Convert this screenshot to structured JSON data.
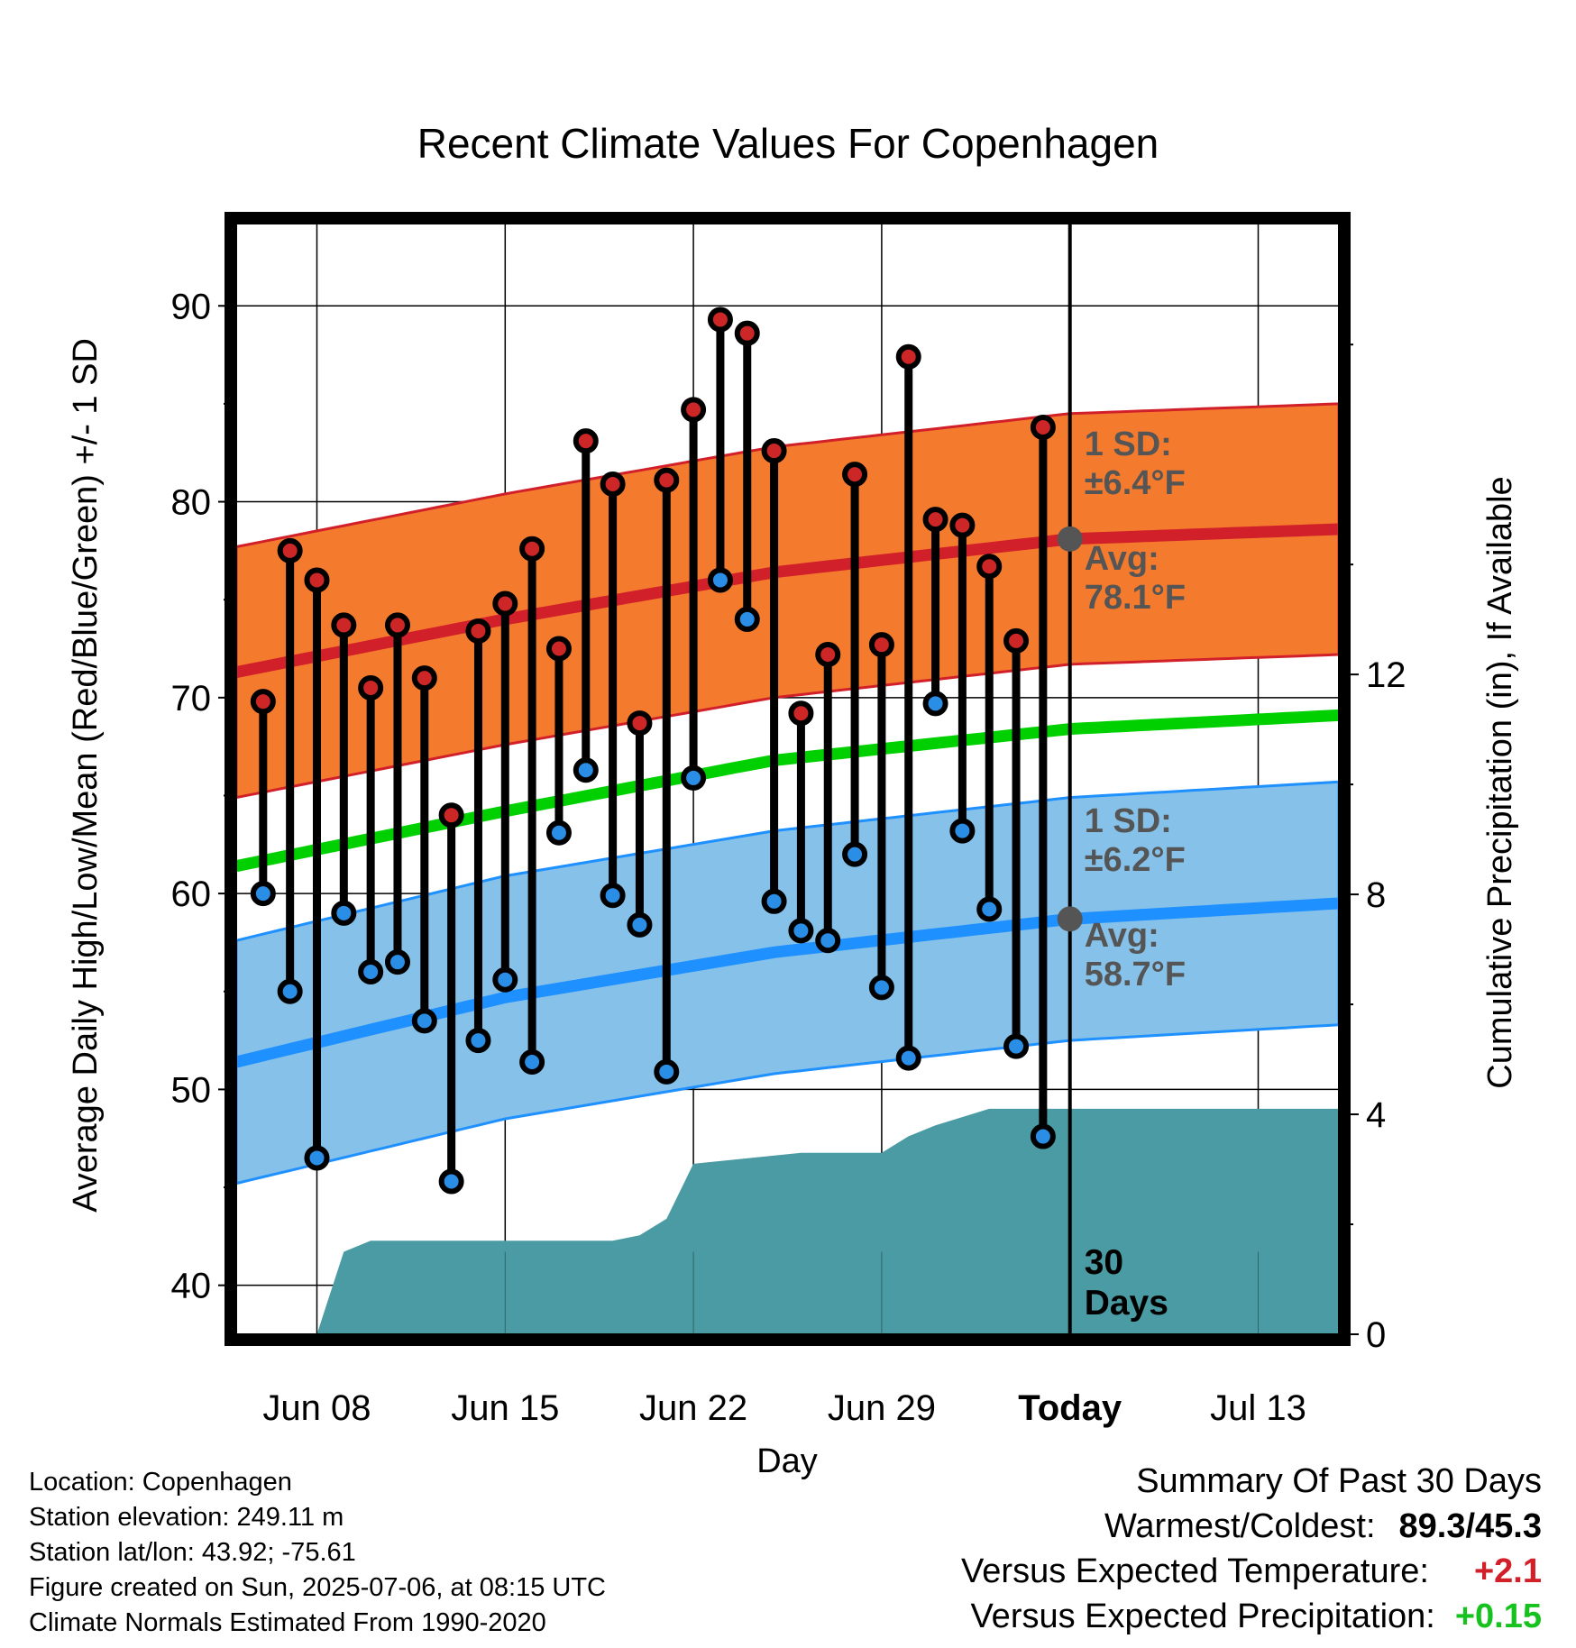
{
  "chart_data": {
    "type": "line",
    "title": "Recent Climate Values For Copenhagen",
    "xlabel": "Day",
    "ylabel": "Average Daily High/Low/Mean (Red/Blue/Green) +/- 1 SD",
    "y2label": "Cumulative Precipitation (in), If Available",
    "ylim": [
      37.5,
      94.2
    ],
    "y2lim": [
      0,
      20.2
    ],
    "x_range": [
      "2025-06-05",
      "2025-07-16"
    ],
    "today": "2025-07-06",
    "x_ticks": [
      {
        "date": "2025-06-08",
        "label": "Jun 08"
      },
      {
        "date": "2025-06-15",
        "label": "Jun 15"
      },
      {
        "date": "2025-06-22",
        "label": "Jun 22"
      },
      {
        "date": "2025-06-29",
        "label": "Jun 29"
      },
      {
        "date": "2025-07-06",
        "label": "Today"
      },
      {
        "date": "2025-07-13",
        "label": "Jul 13"
      }
    ],
    "y_ticks": [
      40,
      50,
      60,
      70,
      80,
      90
    ],
    "y2_ticks": [
      0,
      4,
      8,
      12
    ],
    "grid": true,
    "normals": [
      {
        "date": "2025-06-05",
        "high_mean": 71.3,
        "high_sd": 6.4,
        "low_mean": 51.4,
        "low_sd": 6.2,
        "mean": 61.4
      },
      {
        "date": "2025-06-15",
        "high_mean": 74.0,
        "high_sd": 6.4,
        "low_mean": 54.7,
        "low_sd": 6.2,
        "mean": 64.2
      },
      {
        "date": "2025-06-25",
        "high_mean": 76.4,
        "high_sd": 6.4,
        "low_mean": 57.0,
        "low_sd": 6.2,
        "mean": 66.8
      },
      {
        "date": "2025-07-06",
        "high_mean": 78.1,
        "high_sd": 6.4,
        "low_mean": 58.7,
        "low_sd": 6.2,
        "mean": 68.4
      },
      {
        "date": "2025-07-16",
        "high_mean": 78.6,
        "high_sd": 6.4,
        "low_mean": 59.5,
        "low_sd": 6.2,
        "mean": 69.1
      }
    ],
    "observations": [
      {
        "date": "2025-06-06",
        "high": 69.8,
        "low": 60.0
      },
      {
        "date": "2025-06-07",
        "high": 77.5,
        "low": 55.0
      },
      {
        "date": "2025-06-08",
        "high": 76.0,
        "low": 46.5
      },
      {
        "date": "2025-06-09",
        "high": 73.7,
        "low": 59.0
      },
      {
        "date": "2025-06-10",
        "high": 70.5,
        "low": 56.0
      },
      {
        "date": "2025-06-11",
        "high": 73.7,
        "low": 56.5
      },
      {
        "date": "2025-06-12",
        "high": 71.0,
        "low": 53.5
      },
      {
        "date": "2025-06-13",
        "high": 64.0,
        "low": 45.3
      },
      {
        "date": "2025-06-14",
        "high": 73.4,
        "low": 52.5
      },
      {
        "date": "2025-06-15",
        "high": 74.8,
        "low": 55.6
      },
      {
        "date": "2025-06-16",
        "high": 77.6,
        "low": 51.4
      },
      {
        "date": "2025-06-17",
        "high": 72.5,
        "low": 63.1
      },
      {
        "date": "2025-06-18",
        "high": 83.1,
        "low": 66.3
      },
      {
        "date": "2025-06-19",
        "high": 80.9,
        "low": 59.9
      },
      {
        "date": "2025-06-20",
        "high": 68.7,
        "low": 58.4
      },
      {
        "date": "2025-06-21",
        "high": 81.1,
        "low": 50.9
      },
      {
        "date": "2025-06-22",
        "high": 84.7,
        "low": 65.9
      },
      {
        "date": "2025-06-23",
        "high": 89.3,
        "low": 76.0
      },
      {
        "date": "2025-06-24",
        "high": 88.6,
        "low": 74.0
      },
      {
        "date": "2025-06-25",
        "high": 82.6,
        "low": 59.6
      },
      {
        "date": "2025-06-26",
        "high": 69.2,
        "low": 58.1
      },
      {
        "date": "2025-06-27",
        "high": 72.2,
        "low": 57.6
      },
      {
        "date": "2025-06-28",
        "high": 81.4,
        "low": 62.0
      },
      {
        "date": "2025-06-29",
        "high": 72.7,
        "low": 55.2
      },
      {
        "date": "2025-06-30",
        "high": 87.4,
        "low": 51.6
      },
      {
        "date": "2025-07-01",
        "high": 79.1,
        "low": 69.7
      },
      {
        "date": "2025-07-02",
        "high": 78.8,
        "low": 63.2
      },
      {
        "date": "2025-07-03",
        "high": 76.7,
        "low": 59.2
      },
      {
        "date": "2025-07-04",
        "high": 72.9,
        "low": 52.2
      },
      {
        "date": "2025-07-05",
        "high": 83.8,
        "low": 47.6
      }
    ],
    "cumulative_precip": [
      {
        "date": "2025-06-05",
        "value": 0
      },
      {
        "date": "2025-06-08",
        "value": 0
      },
      {
        "date": "2025-06-09",
        "value": 1.5
      },
      {
        "date": "2025-06-10",
        "value": 1.7
      },
      {
        "date": "2025-06-19",
        "value": 1.7
      },
      {
        "date": "2025-06-20",
        "value": 1.8
      },
      {
        "date": "2025-06-21",
        "value": 2.1
      },
      {
        "date": "2025-06-22",
        "value": 3.1
      },
      {
        "date": "2025-06-26",
        "value": 3.3
      },
      {
        "date": "2025-06-29",
        "value": 3.3
      },
      {
        "date": "2025-06-30",
        "value": 3.6
      },
      {
        "date": "2025-07-01",
        "value": 3.8
      },
      {
        "date": "2025-07-03",
        "value": 4.1
      },
      {
        "date": "2025-07-06",
        "value": 4.1
      },
      {
        "date": "2025-07-16",
        "value": 4.1
      }
    ],
    "annotations": {
      "high_sd": "1 SD:",
      "high_sd_value": "±6.4°F",
      "high_avg": "Avg:",
      "high_avg_value": "78.1°F",
      "low_sd": "1 SD:",
      "low_sd_value": "±6.2°F",
      "low_avg": "Avg:",
      "low_avg_value": "58.7°F",
      "days_count": "30",
      "days_label": "Days"
    },
    "colors": {
      "high_band": "#f47b2e",
      "high_line": "#d2202a",
      "low_band": "#85c1e9",
      "low_line": "#1e90ff",
      "mean_line": "#00d000",
      "precip": "#4a9ba3",
      "high_point": "#cc2626",
      "low_point": "#2a8de6",
      "marker": "#555555"
    }
  },
  "info": {
    "location": "Location: Copenhagen",
    "elevation": "Station elevation: 249.11 m",
    "latlon": "Station lat/lon: 43.92; -75.61",
    "created": "Figure created on Sun, 2025-07-06, at 08:15 UTC",
    "normals": "Climate Normals Estimated From 1990-2020"
  },
  "summary": {
    "title": "Summary Of Past 30 Days",
    "warmest_label": "Warmest/Coldest:",
    "warmest_value": "89.3/45.3",
    "temp_label": "Versus Expected Temperature:",
    "temp_value": "+2.1",
    "precip_label": "Versus Expected Precipitation:",
    "precip_value": "+0.15"
  }
}
